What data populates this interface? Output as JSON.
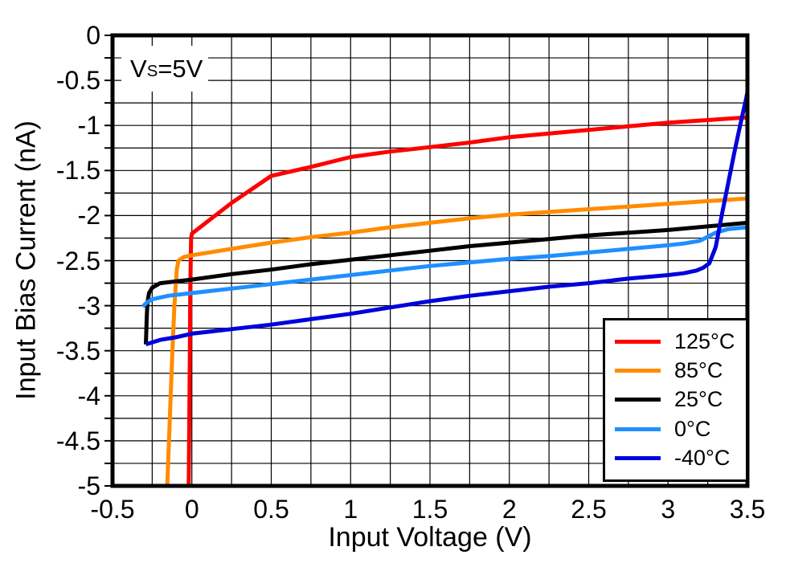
{
  "chart_data": {
    "type": "line",
    "title": "",
    "xlabel": "Input Voltage (V)",
    "ylabel": "Input Bias Current (nA)",
    "xlim": [
      -0.5,
      3.5
    ],
    "ylim": [
      -5,
      0
    ],
    "grid": true,
    "grid_step_x": 0.25,
    "grid_step_y": 0.25,
    "legend_position": "bottom-right",
    "annotation": {
      "text_prefix": "V",
      "subscript": "S",
      "text_suffix": "=5V"
    },
    "x_ticks": {
      "values": [
        -0.5,
        0,
        0.5,
        1,
        1.5,
        2,
        2.5,
        3,
        3.5
      ],
      "labels": [
        "-0.5",
        "0",
        "0.5",
        "1",
        "1.5",
        "2",
        "2.5",
        "3",
        "3.5"
      ]
    },
    "y_ticks": {
      "values": [
        0,
        -0.5,
        -1,
        -1.5,
        -2,
        -2.5,
        -3,
        -3.5,
        -4,
        -4.5,
        -5
      ],
      "labels": [
        "0",
        "-0.5",
        "-1",
        "-1.5",
        "-2",
        "-2.5",
        "-3",
        "-3.5",
        "-4",
        "-4.5",
        "-5"
      ]
    },
    "series": [
      {
        "name": "125°C",
        "color": "#FF0000",
        "points": [
          [
            -0.02,
            -5.0
          ],
          [
            -0.015,
            -4.0
          ],
          [
            -0.01,
            -2.8
          ],
          [
            -0.005,
            -2.25
          ],
          [
            0,
            -2.2
          ],
          [
            0.25,
            -1.86
          ],
          [
            0.5,
            -1.56
          ],
          [
            0.75,
            -1.46
          ],
          [
            1.0,
            -1.35
          ],
          [
            1.25,
            -1.29
          ],
          [
            1.45,
            -1.25
          ],
          [
            1.75,
            -1.19
          ],
          [
            2.0,
            -1.13
          ],
          [
            2.25,
            -1.09
          ],
          [
            2.5,
            -1.05
          ],
          [
            2.75,
            -1.01
          ],
          [
            3.0,
            -0.97
          ],
          [
            3.25,
            -0.94
          ],
          [
            3.5,
            -0.91
          ]
        ]
      },
      {
        "name": "85°C",
        "color": "#FF8C00",
        "points": [
          [
            -0.155,
            -5.0
          ],
          [
            -0.14,
            -4.3
          ],
          [
            -0.125,
            -3.6
          ],
          [
            -0.11,
            -3.0
          ],
          [
            -0.095,
            -2.6
          ],
          [
            -0.085,
            -2.5
          ],
          [
            -0.05,
            -2.46
          ],
          [
            0,
            -2.44
          ],
          [
            0.25,
            -2.37
          ],
          [
            0.5,
            -2.3
          ],
          [
            0.75,
            -2.24
          ],
          [
            1.0,
            -2.19
          ],
          [
            1.25,
            -2.13
          ],
          [
            1.5,
            -2.08
          ],
          [
            1.75,
            -2.03
          ],
          [
            2.0,
            -1.99
          ],
          [
            2.25,
            -1.96
          ],
          [
            2.5,
            -1.93
          ],
          [
            2.75,
            -1.9
          ],
          [
            3.0,
            -1.87
          ],
          [
            3.25,
            -1.84
          ],
          [
            3.5,
            -1.81
          ]
        ]
      },
      {
        "name": "25°C",
        "color": "#000000",
        "points": [
          [
            -0.29,
            -3.43
          ],
          [
            -0.285,
            -3.15
          ],
          [
            -0.28,
            -2.97
          ],
          [
            -0.27,
            -2.86
          ],
          [
            -0.25,
            -2.8
          ],
          [
            -0.2,
            -2.75
          ],
          [
            -0.1,
            -2.73
          ],
          [
            0,
            -2.71
          ],
          [
            0.25,
            -2.65
          ],
          [
            0.5,
            -2.6
          ],
          [
            0.75,
            -2.54
          ],
          [
            1.0,
            -2.49
          ],
          [
            1.25,
            -2.44
          ],
          [
            1.5,
            -2.39
          ],
          [
            1.75,
            -2.34
          ],
          [
            2.0,
            -2.3
          ],
          [
            2.25,
            -2.26
          ],
          [
            2.5,
            -2.22
          ],
          [
            2.75,
            -2.19
          ],
          [
            3.0,
            -2.16
          ],
          [
            3.25,
            -2.12
          ],
          [
            3.5,
            -2.08
          ]
        ]
      },
      {
        "name": "0°C",
        "color": "#1E90FF",
        "points": [
          [
            -0.31,
            -3.01
          ],
          [
            -0.28,
            -2.96
          ],
          [
            -0.25,
            -2.93
          ],
          [
            -0.15,
            -2.89
          ],
          [
            0,
            -2.86
          ],
          [
            0.25,
            -2.81
          ],
          [
            0.5,
            -2.76
          ],
          [
            0.75,
            -2.71
          ],
          [
            1.0,
            -2.66
          ],
          [
            1.25,
            -2.61
          ],
          [
            1.5,
            -2.56
          ],
          [
            1.75,
            -2.52
          ],
          [
            2.0,
            -2.48
          ],
          [
            2.25,
            -2.45
          ],
          [
            2.5,
            -2.41
          ],
          [
            2.75,
            -2.37
          ],
          [
            3.0,
            -2.33
          ],
          [
            3.1,
            -2.31
          ],
          [
            3.2,
            -2.28
          ],
          [
            3.3,
            -2.19
          ],
          [
            3.38,
            -2.15
          ],
          [
            3.5,
            -2.13
          ]
        ]
      },
      {
        "name": "-40°C",
        "color": "#0000DC",
        "points": [
          [
            -0.29,
            -3.43
          ],
          [
            -0.2,
            -3.38
          ],
          [
            -0.1,
            -3.35
          ],
          [
            0,
            -3.31
          ],
          [
            0.25,
            -3.26
          ],
          [
            0.5,
            -3.21
          ],
          [
            0.75,
            -3.15
          ],
          [
            1.0,
            -3.09
          ],
          [
            1.25,
            -3.02
          ],
          [
            1.5,
            -2.95
          ],
          [
            1.75,
            -2.89
          ],
          [
            2.0,
            -2.84
          ],
          [
            2.25,
            -2.79
          ],
          [
            2.5,
            -2.75
          ],
          [
            2.75,
            -2.7
          ],
          [
            3.0,
            -2.66
          ],
          [
            3.1,
            -2.64
          ],
          [
            3.18,
            -2.61
          ],
          [
            3.22,
            -2.58
          ],
          [
            3.26,
            -2.53
          ],
          [
            3.3,
            -2.35
          ],
          [
            3.34,
            -1.98
          ],
          [
            3.38,
            -1.63
          ],
          [
            3.42,
            -1.28
          ],
          [
            3.46,
            -0.95
          ],
          [
            3.49,
            -0.72
          ],
          [
            3.5,
            -0.63
          ]
        ]
      }
    ]
  }
}
